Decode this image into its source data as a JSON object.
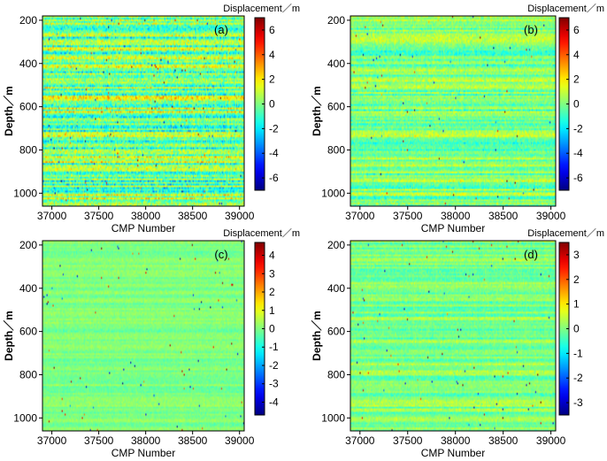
{
  "chart_data": [
    {
      "type": "heatmap",
      "panel_label": "(a)",
      "title": "",
      "xlabel": "CMP Number",
      "ylabel": "Depth／m",
      "xlim": [
        36900,
        39050
      ],
      "ylim": [
        1060,
        180
      ],
      "xticks": [
        37000,
        37500,
        38000,
        38500,
        39000
      ],
      "yticks": [
        200,
        400,
        600,
        800,
        1000
      ],
      "colorbar": {
        "label": "Displacement／m",
        "range": [
          -7,
          7
        ],
        "ticks": [
          -6,
          -4,
          -2,
          0,
          2,
          4,
          6
        ],
        "colormap": "jet"
      },
      "texture": {
        "base": "noise",
        "amplitude": 0.35,
        "horizontal_streaks": 0.55,
        "rows": 110,
        "cols": 200
      }
    },
    {
      "type": "heatmap",
      "panel_label": "(b)",
      "title": "",
      "xlabel": "CMP Number",
      "ylabel": "Depth／m",
      "xlim": [
        36900,
        39050
      ],
      "ylim": [
        1060,
        180
      ],
      "xticks": [
        37000,
        37500,
        38000,
        38500,
        39000
      ],
      "yticks": [
        200,
        400,
        600,
        800,
        1000
      ],
      "colorbar": {
        "label": "Displacement／m",
        "range": [
          -7,
          7
        ],
        "ticks": [
          -6,
          -4,
          -2,
          0,
          2,
          4,
          6
        ],
        "colormap": "jet"
      },
      "texture": {
        "base": "noise",
        "amplitude": 0.2,
        "horizontal_streaks": 0.35,
        "rows": 110,
        "cols": 200
      }
    },
    {
      "type": "heatmap",
      "panel_label": "(c)",
      "title": "",
      "xlabel": "CMP Number",
      "ylabel": "Depth／m",
      "xlim": [
        36900,
        39050
      ],
      "ylim": [
        1060,
        180
      ],
      "xticks": [
        37000,
        37500,
        38000,
        38500,
        39000
      ],
      "yticks": [
        200,
        400,
        600,
        800,
        1000
      ],
      "colorbar": {
        "label": "Displacement／m",
        "range": [
          -4.7,
          4.7
        ],
        "ticks": [
          -4,
          -3,
          -2,
          -1,
          0,
          1,
          2,
          3,
          4
        ],
        "colormap": "jet"
      },
      "texture": {
        "base": "noise",
        "amplitude": 0.1,
        "horizontal_streaks": 0.12,
        "rows": 110,
        "cols": 200
      }
    },
    {
      "type": "heatmap",
      "panel_label": "(d)",
      "title": "",
      "xlabel": "CMP Number",
      "ylabel": "Depth／m",
      "xlim": [
        36900,
        39050
      ],
      "ylim": [
        1060,
        180
      ],
      "xticks": [
        37000,
        37500,
        38000,
        38500,
        39000
      ],
      "yticks": [
        200,
        400,
        600,
        800,
        1000
      ],
      "colorbar": {
        "label": "Displacement／m",
        "range": [
          -3.5,
          3.5
        ],
        "ticks": [
          -3,
          -2,
          -1,
          0,
          1,
          2,
          3
        ],
        "colormap": "jet"
      },
      "texture": {
        "base": "noise",
        "amplitude": 0.14,
        "horizontal_streaks": 0.25,
        "rows": 110,
        "cols": 200
      }
    }
  ]
}
